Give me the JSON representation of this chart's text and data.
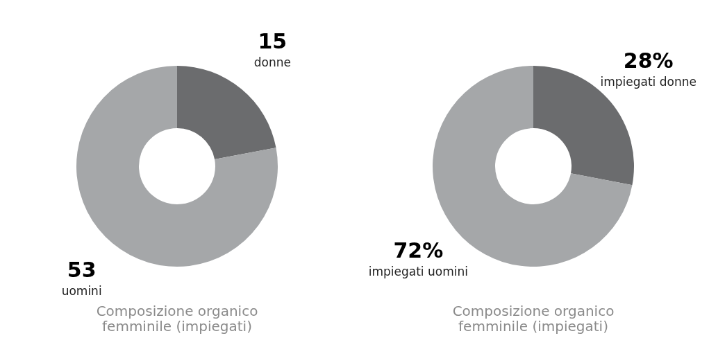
{
  "chart_data": [
    {
      "type": "donut",
      "title": "Composizione organico femminile (impiegati)",
      "categories": [
        "donne",
        "uomini"
      ],
      "values": [
        15,
        53
      ],
      "colors": [
        "#6b6c6e",
        "#a5a7a9"
      ],
      "value_labels": [
        "15",
        "53"
      ]
    },
    {
      "type": "donut",
      "title": "Composizione organico femminile (impiegati)",
      "categories": [
        "impiegati donne",
        "impiegati uomini"
      ],
      "values": [
        28,
        72
      ],
      "colors": [
        "#6b6c6e",
        "#a5a7a9"
      ],
      "value_labels": [
        "28%",
        "72%"
      ]
    }
  ]
}
